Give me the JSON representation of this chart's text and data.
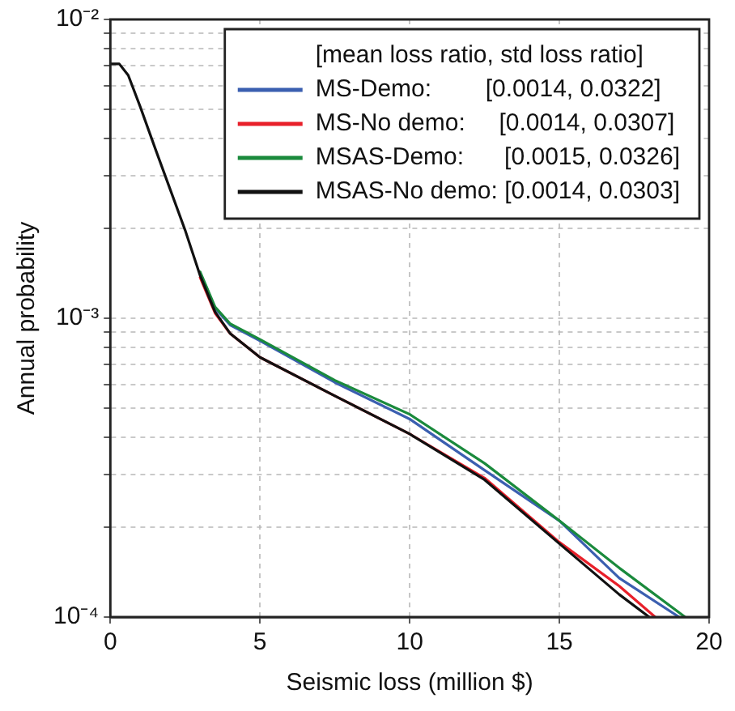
{
  "chart_data": {
    "type": "line",
    "xlabel": "Seismic loss (million $)",
    "ylabel": "Annual probability",
    "legend_title": "[mean loss ratio, std loss ratio]",
    "legend": "top right",
    "grid": true,
    "log": "y",
    "marker": "none",
    "line_style": "solid",
    "xlim": [
      0,
      20
    ],
    "xticks": [
      0,
      5,
      10,
      15,
      20
    ],
    "ylim": [
      0.0001,
      0.01
    ],
    "yticks": [
      {
        "value": 0.0001,
        "label": "10⁻⁴"
      },
      {
        "value": 0.0002,
        "label": null
      },
      {
        "value": 0.0003,
        "label": null
      },
      {
        "value": 0.0004,
        "label": null
      },
      {
        "value": 0.0005,
        "label": null
      },
      {
        "value": 0.0006,
        "label": null
      },
      {
        "value": 0.0007,
        "label": null
      },
      {
        "value": 0.0008,
        "label": null
      },
      {
        "value": 0.0009,
        "label": null
      },
      {
        "value": 0.001,
        "label": "10⁻³"
      },
      {
        "value": 0.002,
        "label": null
      },
      {
        "value": 0.003,
        "label": null
      },
      {
        "value": 0.004,
        "label": null
      },
      {
        "value": 0.005,
        "label": null
      },
      {
        "value": 0.006,
        "label": null
      },
      {
        "value": 0.007,
        "label": null
      },
      {
        "value": 0.008,
        "label": null
      },
      {
        "value": 0.009,
        "label": null
      },
      {
        "value": 0.01,
        "label": "10⁻²"
      }
    ],
    "series": [
      {
        "name": "MS-Demo:        [0.0014, 0.0322]",
        "color": "#3b5fb0",
        "x": [
          3,
          3.5,
          4,
          5,
          7.5,
          10,
          12.5,
          15,
          17,
          19
        ],
        "values": [
          0.00142,
          0.00108,
          0.00095,
          0.00084,
          0.00061,
          0.00046,
          0.00031,
          0.00021,
          0.000135,
          0.0001
        ]
      },
      {
        "name": "MS-No demo:     [0.0014, 0.0307]",
        "color": "#e8202a",
        "x": [
          3,
          3.5,
          4,
          5,
          7.5,
          10,
          12.5,
          15,
          17,
          18.2
        ],
        "values": [
          0.00137,
          0.00104,
          0.00089,
          0.00074,
          0.00055,
          0.00041,
          0.000292,
          0.000178,
          0.000127,
          0.0001
        ]
      },
      {
        "name": "MSAS-Demo:      [0.0015, 0.0326]",
        "color": "#1a8a3c",
        "x": [
          3,
          3.5,
          4,
          5,
          7.5,
          10,
          12.5,
          15,
          17,
          19.2
        ],
        "values": [
          0.00143,
          0.00109,
          0.00096,
          0.00085,
          0.00062,
          0.000477,
          0.000327,
          0.00021,
          0.000146,
          0.0001
        ]
      },
      {
        "name": "MSAS-No demo: [0.0014, 0.0303]",
        "color": "#111111",
        "x": [
          0,
          0.3,
          0.6,
          1,
          1.5,
          2,
          2.5,
          3,
          3.5,
          4,
          5,
          7.5,
          10,
          12.5,
          15,
          17,
          18
        ],
        "values": [
          0.0071,
          0.0071,
          0.0065,
          0.0051,
          0.0037,
          0.0027,
          0.00197,
          0.00139,
          0.00105,
          0.00089,
          0.00074,
          0.00055,
          0.00041,
          0.000288,
          0.000176,
          0.000119,
          0.0001
        ]
      }
    ]
  }
}
